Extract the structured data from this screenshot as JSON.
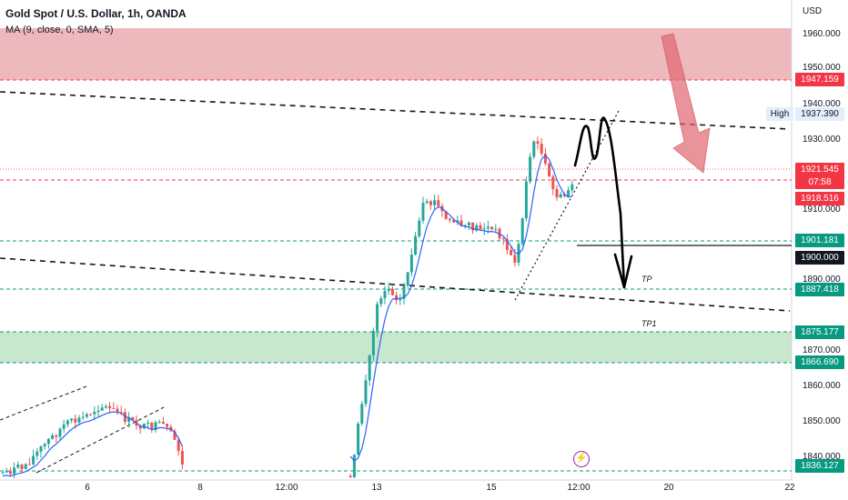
{
  "legend": {
    "title": "Gold Spot / U.S. Dollar, 1h, OANDA",
    "indicator": "MA (9, close, 0, SMA, 5)"
  },
  "price_axis": {
    "currency": "USD",
    "ticks": [
      "1960.000",
      "1950.000",
      "1940.000",
      "1930.000",
      "1910.000",
      "1890.000",
      "1870.000",
      "1860.000",
      "1850.000",
      "1840.000"
    ]
  },
  "time_axis": {
    "ticks": [
      "6",
      "8",
      "12:00",
      "13",
      "15",
      "12:00",
      "20",
      "22"
    ]
  },
  "badges": {
    "b1947": "1947.159",
    "high_label": "High",
    "high_value": "1937.390",
    "last_price": "1921.545",
    "countdown": "07:58",
    "b1918": "1918.516",
    "b1901": "1901.181",
    "b1900": "1900.000",
    "b1887": "1887.418",
    "b1875": "1875.177",
    "b1866": "1866.690",
    "b1836": "1836.127"
  },
  "annotations": {
    "tp": "TP",
    "tp1": "TP1"
  },
  "colors": {
    "red_zone": "#e8a1a5",
    "green_zone": "#b7dfbc",
    "candle_up": "#26a69a",
    "candle_down": "#ef5350",
    "ma_line": "#2962ff",
    "red_badge": "#f23645",
    "green_badge": "#089981",
    "high_badge": "#e3effd"
  },
  "icons": {
    "event": "lightning-bolt-icon",
    "forecast_arrow": "down-arrow-icon"
  }
}
